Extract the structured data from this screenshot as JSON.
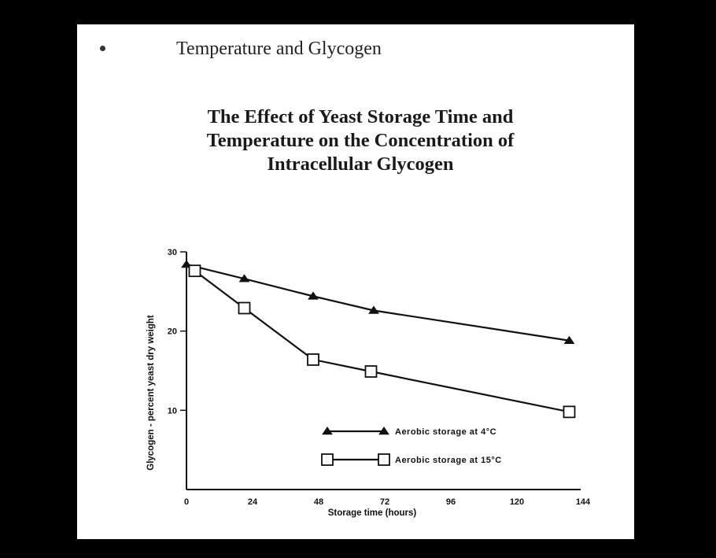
{
  "slide": {
    "title": "Temperature and Glycogen"
  },
  "chart_data": {
    "type": "line",
    "title_lines": [
      "The Effect of Yeast Storage Time and",
      "Temperature on the Concentration of",
      "Intracellular Glycogen"
    ],
    "xlabel": "Storage time (hours)",
    "ylabel": "Glycogen - percent yeast dry weight",
    "xlim": [
      0,
      144
    ],
    "ylim": [
      0,
      30
    ],
    "x_ticks": [
      0,
      24,
      48,
      72,
      96,
      120,
      144
    ],
    "y_ticks": [
      10,
      20,
      30
    ],
    "grid": false,
    "legend_position": "lower-center",
    "series": [
      {
        "name": "Aerobic storage at 4°C",
        "marker": "filled-triangle",
        "x": [
          0,
          21,
          46,
          68,
          139
        ],
        "y": [
          28.4,
          26.6,
          24.4,
          22.6,
          18.8
        ]
      },
      {
        "name": "Aerobic storage at 15°C",
        "marker": "open-square",
        "x": [
          3,
          21,
          46,
          67,
          139
        ],
        "y": [
          27.6,
          22.9,
          16.4,
          14.9,
          9.8
        ]
      }
    ],
    "colors": {
      "line": "#111111",
      "background": "#ffffff"
    }
  }
}
